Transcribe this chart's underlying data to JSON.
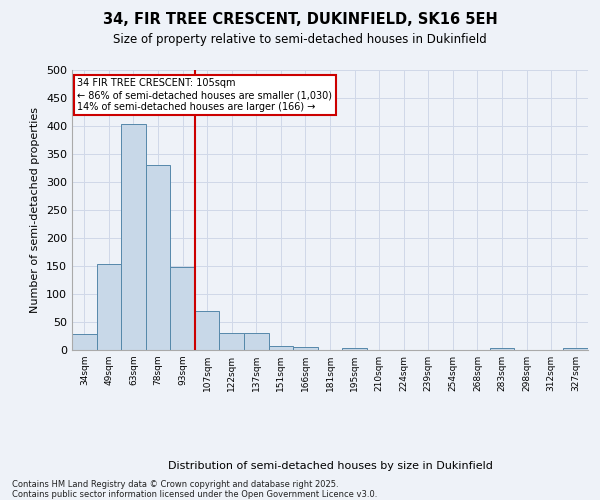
{
  "title1": "34, FIR TREE CRESCENT, DUKINFIELD, SK16 5EH",
  "title2": "Size of property relative to semi-detached houses in Dukinfield",
  "xlabel": "Distribution of semi-detached houses by size in Dukinfield",
  "ylabel": "Number of semi-detached properties",
  "footnote": "Contains HM Land Registry data © Crown copyright and database right 2025.\nContains public sector information licensed under the Open Government Licence v3.0.",
  "bin_labels": [
    "34sqm",
    "49sqm",
    "63sqm",
    "78sqm",
    "93sqm",
    "107sqm",
    "122sqm",
    "137sqm",
    "151sqm",
    "166sqm",
    "181sqm",
    "195sqm",
    "210sqm",
    "224sqm",
    "239sqm",
    "254sqm",
    "268sqm",
    "283sqm",
    "298sqm",
    "312sqm",
    "327sqm"
  ],
  "bar_heights": [
    28,
    153,
    404,
    330,
    148,
    70,
    31,
    30,
    8,
    6,
    0,
    3,
    0,
    0,
    0,
    0,
    0,
    3,
    0,
    0,
    3
  ],
  "bar_color": "#c8d8e8",
  "bar_edge_color": "#5588aa",
  "grid_color": "#d0d8e8",
  "vline_x": 5,
  "vline_color": "#cc0000",
  "annotation_text": "34 FIR TREE CRESCENT: 105sqm\n← 86% of semi-detached houses are smaller (1,030)\n14% of semi-detached houses are larger (166) →",
  "annotation_box_edge": "#cc0000",
  "ylim": [
    0,
    500
  ],
  "yticks": [
    0,
    50,
    100,
    150,
    200,
    250,
    300,
    350,
    400,
    450,
    500
  ],
  "background_color": "#eef2f8"
}
